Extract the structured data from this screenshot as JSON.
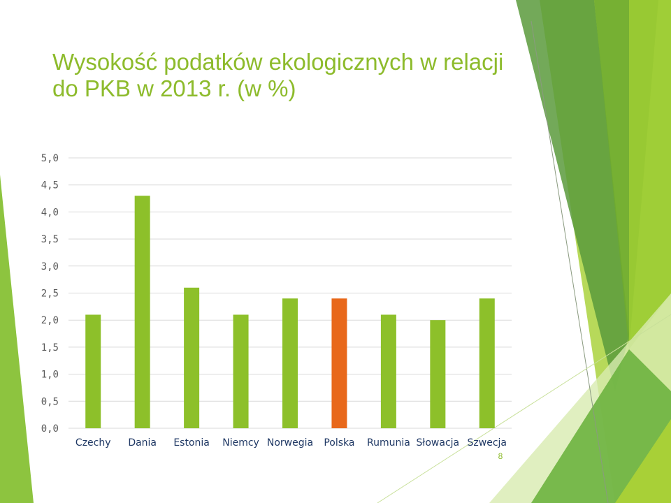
{
  "slide": {
    "title_line1": "Wysokość podatków ekologicznych w relacji",
    "title_line2": "do PKB w 2013 r. (w %)",
    "page_number": "8"
  },
  "colors": {
    "bar": "#8dc02a",
    "highlight": "#e8681b",
    "title": "#8dbb2c",
    "gridline": "#d9d9d9",
    "tick_text": "#595959",
    "category_text": "#1f3864"
  },
  "chart_data": {
    "type": "bar",
    "title": "",
    "xlabel": "",
    "ylabel": "",
    "categories": [
      "Czechy",
      "Dania",
      "Estonia",
      "Niemcy",
      "Norwegia",
      "Polska",
      "Rumunia",
      "Słowacja",
      "Szwecja"
    ],
    "values": [
      2.1,
      4.3,
      2.6,
      2.1,
      2.4,
      2.4,
      2.1,
      2.0,
      2.4
    ],
    "highlight_category": "Polska",
    "ylim": [
      0,
      5
    ],
    "y_ticks": [
      "0,0",
      "0,5",
      "1,0",
      "1,5",
      "2,0",
      "2,5",
      "3,0",
      "3,5",
      "4,0",
      "4,5",
      "5,0"
    ],
    "grid": true,
    "legend": "none"
  }
}
